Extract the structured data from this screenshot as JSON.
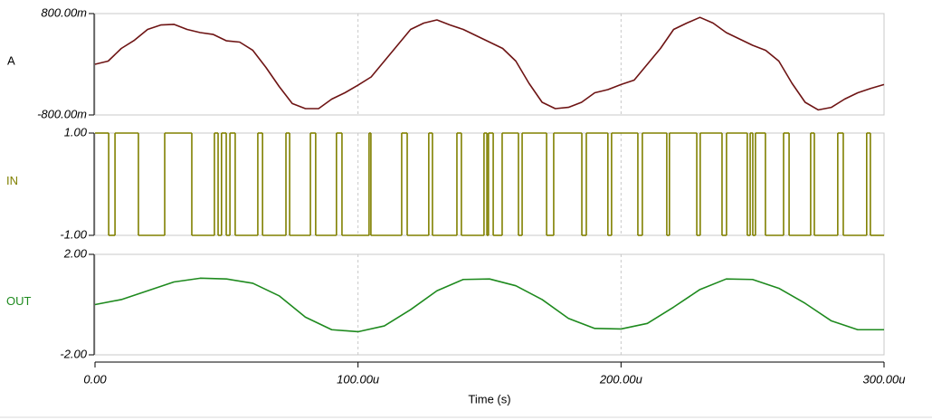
{
  "chart_data": [
    {
      "type": "line",
      "xlim": [
        0,
        0.0003
      ],
      "xticks": [
        0,
        0.0001,
        0.0002,
        0.0003
      ],
      "ylim": [
        -0.8,
        0.8
      ],
      "yticks": [
        {
          "value": 0.8,
          "label": "800.00m"
        },
        {
          "value": -0.8,
          "label": "-800.00m"
        }
      ],
      "x": [
        0,
        5e-06,
        1e-05,
        1.5e-05,
        2e-05,
        2.5e-05,
        3e-05,
        3.5e-05,
        4e-05,
        4.5e-05,
        5e-05,
        5.5e-05,
        6e-05,
        6.5e-05,
        7e-05,
        7.5e-05,
        8e-05,
        8.5e-05,
        9e-05,
        9.5e-05,
        0.0001,
        0.000105,
        0.00011,
        0.000115,
        0.00012,
        0.000125,
        0.00013,
        0.000135,
        0.00014,
        0.000145,
        0.00015,
        0.000155,
        0.00016,
        0.000165,
        0.00017,
        0.000175,
        0.00018,
        0.000185,
        0.00019,
        0.000195,
        0.0002,
        0.000205,
        0.00021,
        0.000215,
        0.00022,
        0.000225,
        0.00023,
        0.000235,
        0.00024,
        0.000245,
        0.00025,
        0.000255,
        0.00026,
        0.000265,
        0.00027,
        0.000275,
        0.00028,
        0.000285,
        0.00029,
        0.000295,
        0.0003
      ],
      "series": [
        {
          "name": "A",
          "color": "#6e1414",
          "values": [
            0,
            0.05,
            0.25,
            0.38,
            0.55,
            0.62,
            0.63,
            0.55,
            0.5,
            0.47,
            0.37,
            0.35,
            0.22,
            -0.05,
            -0.35,
            -0.62,
            -0.7,
            -0.7,
            -0.55,
            -0.45,
            -0.33,
            -0.2,
            0.05,
            0.3,
            0.55,
            0.65,
            0.7,
            0.62,
            0.55,
            0.45,
            0.35,
            0.25,
            0.05,
            -0.3,
            -0.6,
            -0.7,
            -0.68,
            -0.6,
            -0.45,
            -0.4,
            -0.32,
            -0.25,
            0,
            0.25,
            0.55,
            0.65,
            0.74,
            0.65,
            0.5,
            0.4,
            0.3,
            0.22,
            0.05,
            -0.3,
            -0.6,
            -0.72,
            -0.68,
            -0.55,
            -0.45,
            -0.38,
            -0.32
          ]
        }
      ]
    },
    {
      "type": "line",
      "drawstyle": "steps-post",
      "xlim": [
        0,
        0.0003
      ],
      "xticks": [
        0,
        0.0001,
        0.0002,
        0.0003
      ],
      "ylim": [
        -1,
        1
      ],
      "yticks": [
        {
          "value": 1,
          "label": "1.00"
        },
        {
          "value": -1,
          "label": "-1.00"
        }
      ],
      "x": [
        0,
        5.2e-06,
        7.6e-06,
        1.65e-05,
        2.65e-05,
        3.68e-05,
        4.54e-05,
        4.68e-05,
        4.81e-05,
        4.99e-05,
        5.13e-05,
        5.33e-05,
        6.19e-05,
        6.37e-05,
        7.26e-05,
        7.4e-05,
        8.19e-05,
        8.39e-05,
        9.18e-05,
        9.39e-05,
        0.0001042,
        0.0001049,
        0.0001166,
        0.0001187,
        0.0001269,
        0.0001283,
        0.0001376,
        0.0001393,
        0.0001479,
        0.000149,
        0.0001496,
        0.0001514,
        0.0001548,
        0.000161,
        0.0001624,
        0.0001717,
        0.0001744,
        0.0001851,
        0.0001868,
        0.000195,
        0.0001964,
        0.0002064,
        0.0002081,
        0.0002174,
        0.0002184,
        0.0002288,
        0.0002301,
        0.0002384,
        0.0002401,
        0.000248,
        0.0002491,
        0.0002501,
        0.0002511,
        0.0002549,
        0.0002618,
        0.0002639,
        0.0002721,
        0.0002735,
        0.0002824,
        0.0002845,
        0.0002934,
        0.0002948
      ],
      "series": [
        {
          "name": "IN",
          "color": "#808000",
          "values": [
            1,
            -1,
            1,
            -1,
            1,
            -1,
            1,
            -1,
            1,
            -1,
            1,
            -1,
            1,
            -1,
            1,
            -1,
            1,
            -1,
            1,
            -1,
            1,
            -1,
            1,
            -1,
            1,
            -1,
            1,
            -1,
            1,
            -1,
            1,
            -1,
            1,
            -1,
            1,
            -1,
            1,
            -1,
            1,
            -1,
            1,
            -1,
            1,
            -1,
            1,
            -1,
            1,
            -1,
            1,
            -1,
            1,
            -1,
            1,
            -1,
            1,
            -1,
            1,
            -1,
            1,
            -1,
            1,
            -1
          ]
        }
      ]
    },
    {
      "type": "line",
      "xlim": [
        0,
        0.0003
      ],
      "xticks": [
        {
          "value": 0,
          "label": "0.00"
        },
        {
          "value": 0.0001,
          "label": "100.00u"
        },
        {
          "value": 0.0002,
          "label": "200.00u"
        },
        {
          "value": 0.0003,
          "label": "300.00u"
        }
      ],
      "xlabel": "Time (s)",
      "ylim": [
        -2,
        2
      ],
      "yticks": [
        {
          "value": 2,
          "label": "2.00"
        },
        {
          "value": -2,
          "label": "-2.00"
        }
      ],
      "x": [
        0,
        1e-05,
        2e-05,
        3e-05,
        4e-05,
        5e-05,
        6e-05,
        7e-05,
        8e-05,
        9e-05,
        0.0001,
        0.00011,
        0.00012,
        0.00013,
        0.00014,
        0.00015,
        0.00016,
        0.00017,
        0.00018,
        0.00019,
        0.0002,
        0.00021,
        0.00022,
        0.00023,
        0.00024,
        0.00025,
        0.00026,
        0.00027,
        0.00028,
        0.00029,
        0.0003
      ],
      "series": [
        {
          "name": "OUT",
          "color": "#1e8a1e",
          "values": [
            0,
            0.2,
            0.55,
            0.9,
            1.05,
            1.02,
            0.85,
            0.35,
            -0.5,
            -1,
            -1.08,
            -0.85,
            -0.2,
            0.55,
            1,
            1.02,
            0.75,
            0.2,
            -0.55,
            -0.95,
            -0.97,
            -0.75,
            -0.1,
            0.6,
            1.02,
            1,
            0.65,
            0.05,
            -0.65,
            -1,
            -1
          ]
        }
      ]
    }
  ]
}
